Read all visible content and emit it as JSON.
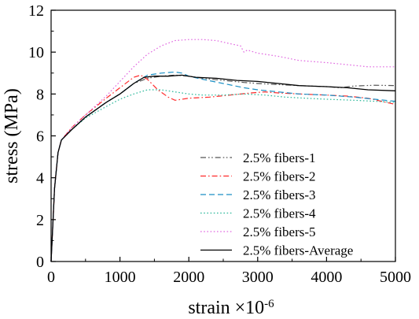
{
  "chart_data": {
    "type": "line",
    "xlabel": "strain ×10",
    "xlabel_exponent": "-6",
    "ylabel": "stress  (MPa)",
    "xlim": [
      0,
      5000
    ],
    "ylim": [
      0,
      12
    ],
    "xticks": [
      0,
      1000,
      2000,
      3000,
      4000,
      5000
    ],
    "yticks": [
      0,
      2,
      4,
      6,
      8,
      10,
      12
    ],
    "grid": false,
    "legend_position": "bottom-right",
    "series": [
      {
        "name": "2.5% fibers-1",
        "color": "#555555",
        "dash": "dashdotdot",
        "points": [
          [
            0,
            0
          ],
          [
            50,
            3.5
          ],
          [
            100,
            5.2
          ],
          [
            150,
            5.8
          ],
          [
            300,
            6.3
          ],
          [
            500,
            6.9
          ],
          [
            800,
            7.6
          ],
          [
            1000,
            8.0
          ],
          [
            1200,
            8.5
          ],
          [
            1400,
            8.75
          ],
          [
            1600,
            8.85
          ],
          [
            1800,
            8.9
          ],
          [
            2000,
            8.85
          ],
          [
            2200,
            8.75
          ],
          [
            2500,
            8.65
          ],
          [
            2800,
            8.55
          ],
          [
            3000,
            8.5
          ],
          [
            3300,
            8.45
          ],
          [
            3600,
            8.4
          ],
          [
            4000,
            8.35
          ],
          [
            4200,
            8.3
          ],
          [
            4400,
            8.38
          ],
          [
            4700,
            8.42
          ],
          [
            5000,
            8.4
          ]
        ]
      },
      {
        "name": "2.5% fibers-2",
        "color": "#ff2a2a",
        "dash": "dashdot",
        "points": [
          [
            0,
            0
          ],
          [
            50,
            3.5
          ],
          [
            100,
            5.2
          ],
          [
            150,
            5.8
          ],
          [
            300,
            6.4
          ],
          [
            500,
            7.0
          ],
          [
            800,
            7.8
          ],
          [
            1000,
            8.3
          ],
          [
            1200,
            8.8
          ],
          [
            1300,
            8.9
          ],
          [
            1400,
            8.7
          ],
          [
            1550,
            8.2
          ],
          [
            1700,
            7.85
          ],
          [
            1800,
            7.7
          ],
          [
            2000,
            7.8
          ],
          [
            2300,
            7.85
          ],
          [
            2600,
            7.95
          ],
          [
            2900,
            8.05
          ],
          [
            3100,
            8.1
          ],
          [
            3300,
            8.05
          ],
          [
            3600,
            8.0
          ],
          [
            4000,
            7.95
          ],
          [
            4300,
            7.9
          ],
          [
            4600,
            7.8
          ],
          [
            5000,
            7.5
          ]
        ]
      },
      {
        "name": "2.5% fibers-3",
        "color": "#1a8fc4",
        "dash": "dash",
        "points": [
          [
            0,
            0
          ],
          [
            50,
            3.5
          ],
          [
            100,
            5.2
          ],
          [
            150,
            5.8
          ],
          [
            300,
            6.3
          ],
          [
            500,
            6.9
          ],
          [
            800,
            7.6
          ],
          [
            1000,
            8.0
          ],
          [
            1200,
            8.5
          ],
          [
            1400,
            8.9
          ],
          [
            1600,
            9.0
          ],
          [
            1800,
            9.05
          ],
          [
            1900,
            9.0
          ],
          [
            2000,
            8.85
          ],
          [
            2200,
            8.7
          ],
          [
            2500,
            8.5
          ],
          [
            2800,
            8.3
          ],
          [
            3000,
            8.2
          ],
          [
            3300,
            8.1
          ],
          [
            3600,
            8.0
          ],
          [
            4000,
            7.95
          ],
          [
            4400,
            7.85
          ],
          [
            4700,
            7.75
          ],
          [
            5000,
            7.65
          ]
        ]
      },
      {
        "name": "2.5% fibers-4",
        "color": "#2ab89a",
        "dash": "dot",
        "points": [
          [
            0,
            0
          ],
          [
            50,
            3.5
          ],
          [
            100,
            5.2
          ],
          [
            150,
            5.8
          ],
          [
            300,
            6.3
          ],
          [
            500,
            6.85
          ],
          [
            800,
            7.4
          ],
          [
            1000,
            7.75
          ],
          [
            1200,
            8.0
          ],
          [
            1400,
            8.2
          ],
          [
            1600,
            8.2
          ],
          [
            1800,
            8.1
          ],
          [
            2000,
            8.0
          ],
          [
            2200,
            7.95
          ],
          [
            2500,
            7.95
          ],
          [
            2800,
            8.0
          ],
          [
            3100,
            7.95
          ],
          [
            3400,
            7.85
          ],
          [
            3700,
            7.8
          ],
          [
            4000,
            7.75
          ],
          [
            4400,
            7.7
          ],
          [
            4700,
            7.65
          ],
          [
            5000,
            7.6
          ]
        ]
      },
      {
        "name": "2.5% fibers-5",
        "color": "#e066e0",
        "dash": "dot",
        "points": [
          [
            0,
            0
          ],
          [
            50,
            3.5
          ],
          [
            100,
            5.2
          ],
          [
            150,
            5.8
          ],
          [
            300,
            6.4
          ],
          [
            500,
            7.0
          ],
          [
            800,
            7.9
          ],
          [
            1000,
            8.6
          ],
          [
            1200,
            9.3
          ],
          [
            1400,
            9.9
          ],
          [
            1600,
            10.3
          ],
          [
            1800,
            10.55
          ],
          [
            2000,
            10.6
          ],
          [
            2200,
            10.6
          ],
          [
            2400,
            10.55
          ],
          [
            2600,
            10.4
          ],
          [
            2750,
            10.3
          ],
          [
            2800,
            10.0
          ],
          [
            2850,
            10.1
          ],
          [
            3000,
            9.95
          ],
          [
            3300,
            9.8
          ],
          [
            3600,
            9.6
          ],
          [
            4000,
            9.5
          ],
          [
            4300,
            9.4
          ],
          [
            4600,
            9.3
          ],
          [
            5000,
            9.3
          ]
        ]
      },
      {
        "name": "2.5% fibers-Average",
        "color": "#000000",
        "dash": "solid",
        "points": [
          [
            0,
            0
          ],
          [
            50,
            3.5
          ],
          [
            100,
            5.2
          ],
          [
            150,
            5.8
          ],
          [
            300,
            6.3
          ],
          [
            500,
            6.9
          ],
          [
            800,
            7.6
          ],
          [
            1000,
            8.0
          ],
          [
            1200,
            8.5
          ],
          [
            1350,
            8.8
          ],
          [
            1500,
            8.85
          ],
          [
            1700,
            8.85
          ],
          [
            1900,
            8.9
          ],
          [
            2100,
            8.8
          ],
          [
            2400,
            8.75
          ],
          [
            2700,
            8.65
          ],
          [
            3000,
            8.6
          ],
          [
            3300,
            8.5
          ],
          [
            3600,
            8.4
          ],
          [
            4000,
            8.35
          ],
          [
            4300,
            8.3
          ],
          [
            4600,
            8.2
          ],
          [
            5000,
            8.15
          ]
        ]
      }
    ]
  }
}
